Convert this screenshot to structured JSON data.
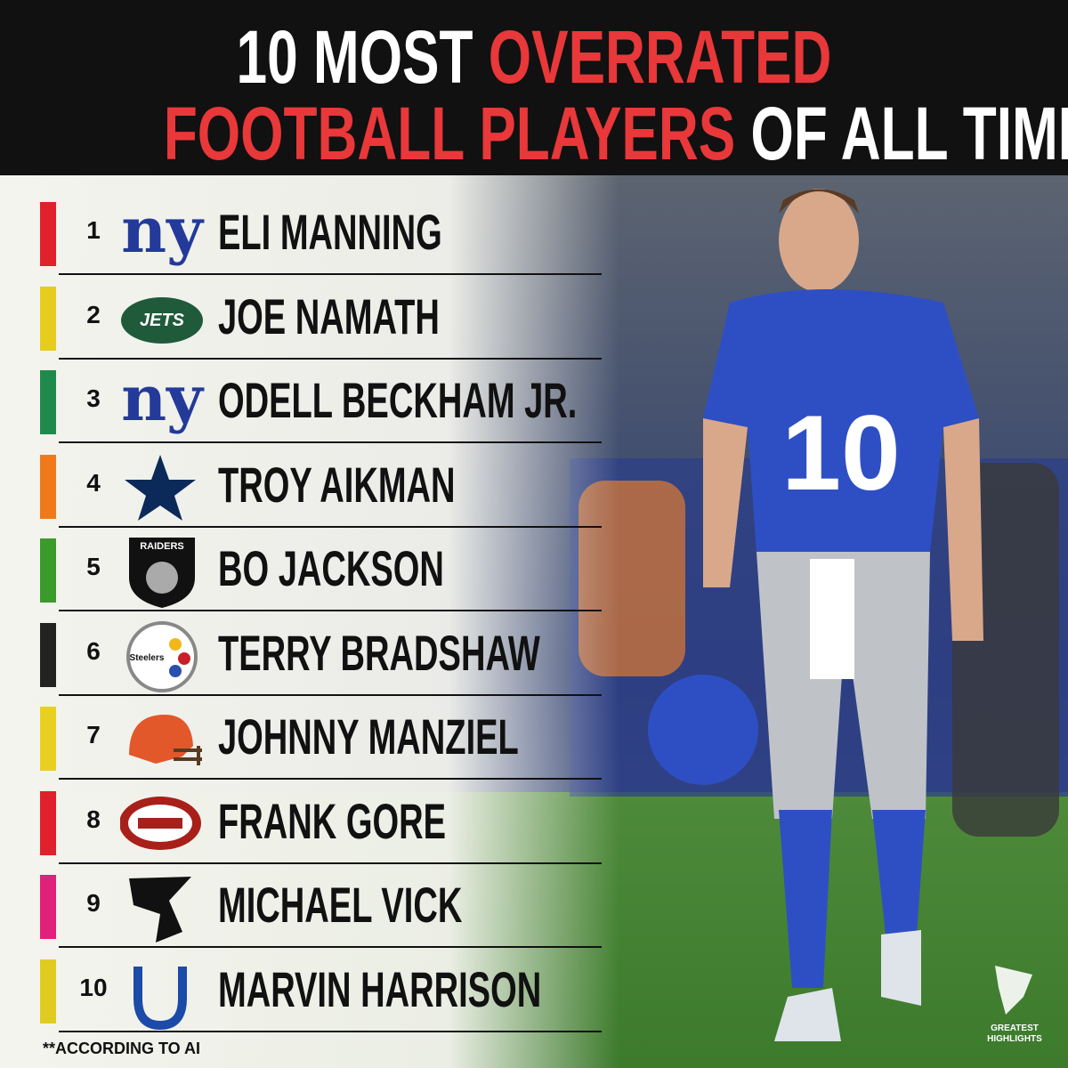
{
  "title": {
    "line1": {
      "plain": "10 MOST",
      "highlight": "OVERRATED"
    },
    "line2": {
      "highlight": "FOOTBALL PLAYERS",
      "plain": "OF ALL TIME"
    }
  },
  "items": [
    {
      "rank": 1,
      "logo_text": "ny",
      "name": "ELI MANNING",
      "color": "#e0202a"
    },
    {
      "rank": 2,
      "logo_text": "JETS",
      "name": "JOE NAMATH",
      "color": "#e6cc1e"
    },
    {
      "rank": 3,
      "logo_text": "ny",
      "name": "ODELL BECKHAM JR.",
      "color": "#1f8a4c"
    },
    {
      "rank": 4,
      "name": "TROY AIKMAN",
      "color": "#f07a1a"
    },
    {
      "rank": 5,
      "logo_text": "RAIDERS",
      "name": "BO JACKSON",
      "color": "#3a9a2a"
    },
    {
      "rank": 6,
      "logo_text": "Steelers",
      "name": "TERRY BRADSHAW",
      "color": "#222222"
    },
    {
      "rank": 7,
      "name": "JOHNNY MANZIEL",
      "color": "#e8d020"
    },
    {
      "rank": 8,
      "name": "FRANK GORE",
      "color": "#e0202a"
    },
    {
      "rank": 9,
      "name": "MICHAEL VICK",
      "color": "#e0207a"
    },
    {
      "rank": 10,
      "name": "MARVIN HARRISON",
      "color": "#e0cc20"
    }
  ],
  "footnote": "**ACCORDING TO AI",
  "watermark": {
    "line1": "GREATEST",
    "line2": "HIGHLIGHTS"
  }
}
